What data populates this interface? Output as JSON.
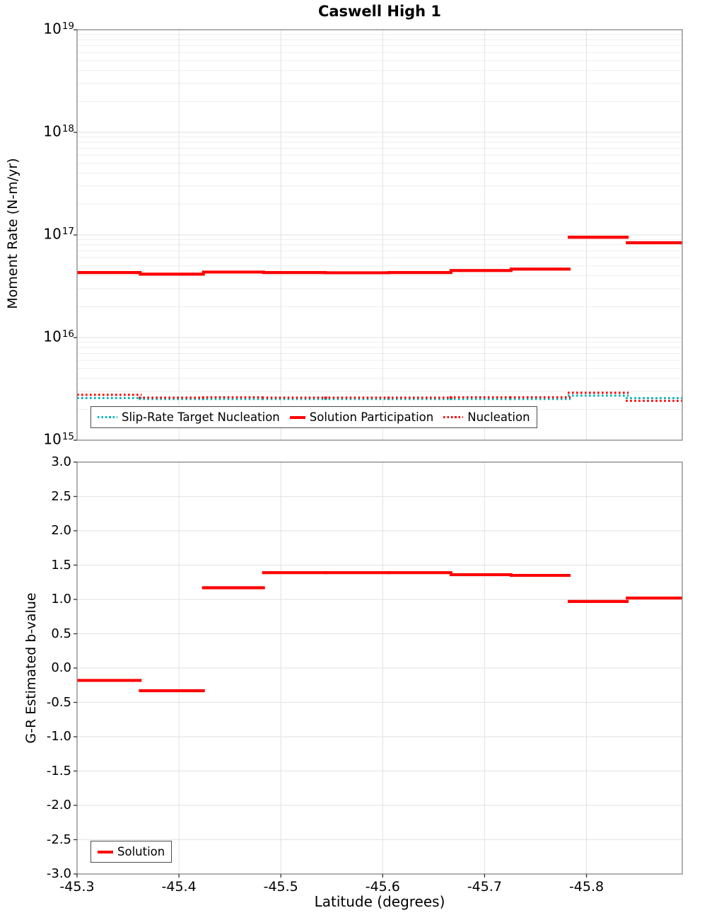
{
  "title": "Caswell High 1",
  "chart_data": [
    {
      "type": "line",
      "panel": "moment-rate",
      "title": "Caswell High 1",
      "xlabel": "",
      "ylabel": "Moment Rate (N-m/yr)",
      "yscale": "log",
      "ylim": [
        1000000000000000.0,
        1e+19
      ],
      "xlim": [
        -45.3,
        -45.894
      ],
      "grid": true,
      "legend_position": "lower-left",
      "x_ticks": [
        -45.3,
        -45.4,
        -45.5,
        -45.6,
        -45.7,
        -45.8
      ],
      "y_tick_exponents": [
        19,
        18,
        17,
        16,
        15
      ],
      "x_step_boundaries": [
        -45.3,
        -45.362,
        -45.424,
        -45.483,
        -45.544,
        -45.606,
        -45.667,
        -45.726,
        -45.783,
        -45.84,
        -45.894
      ],
      "series": [
        {
          "name": "Slip-Rate Target Nucleation",
          "color": "#00b5b5",
          "style": "dotted",
          "values": [
            2570000000000000.0,
            2520000000000000.0,
            2520000000000000.0,
            2520000000000000.0,
            2520000000000000.0,
            2520000000000000.0,
            2520000000000000.0,
            2520000000000000.0,
            2720000000000000.0,
            2570000000000000.0
          ]
        },
        {
          "name": "Solution Participation",
          "color": "#ff0000",
          "style": "solid",
          "values": [
            4.3e+16,
            4.15e+16,
            4.35e+16,
            4.3e+16,
            4.28e+16,
            4.3e+16,
            4.5e+16,
            4.65e+16,
            9.5e+16,
            8.4e+16
          ]
        },
        {
          "name": "Nucleation",
          "color": "#ff0000",
          "style": "dotted",
          "values": [
            2770000000000000.0,
            2600000000000000.0,
            2620000000000000.0,
            2600000000000000.0,
            2600000000000000.0,
            2600000000000000.0,
            2620000000000000.0,
            2620000000000000.0,
            2900000000000000.0,
            2420000000000000.0
          ]
        }
      ]
    },
    {
      "type": "line",
      "panel": "b-value",
      "title": "",
      "xlabel": "Latitude (degrees)",
      "ylabel": "G-R Estimated b-value",
      "yscale": "linear",
      "ylim": [
        -3.0,
        3.0
      ],
      "xlim": [
        -45.3,
        -45.894
      ],
      "grid": true,
      "legend_position": "lower-left",
      "x_ticks": [
        -45.3,
        -45.4,
        -45.5,
        -45.6,
        -45.7,
        -45.8
      ],
      "x_tick_labels": [
        "-45.3",
        "-45.4",
        "-45.5",
        "-45.6",
        "-45.7",
        "-45.8"
      ],
      "y_ticks": [
        3.0,
        2.5,
        2.0,
        1.5,
        1.0,
        0.5,
        0.0,
        -0.5,
        -1.0,
        -1.5,
        -2.0,
        -2.5,
        -3.0
      ],
      "x_step_boundaries": [
        -45.3,
        -45.362,
        -45.424,
        -45.483,
        -45.544,
        -45.606,
        -45.667,
        -45.726,
        -45.783,
        -45.84,
        -45.894
      ],
      "series": [
        {
          "name": "Solution",
          "color": "#ff0000",
          "style": "solid",
          "values": [
            -0.18,
            -0.33,
            1.17,
            1.39,
            1.39,
            1.39,
            1.36,
            1.35,
            0.97,
            1.02
          ]
        }
      ]
    }
  ]
}
